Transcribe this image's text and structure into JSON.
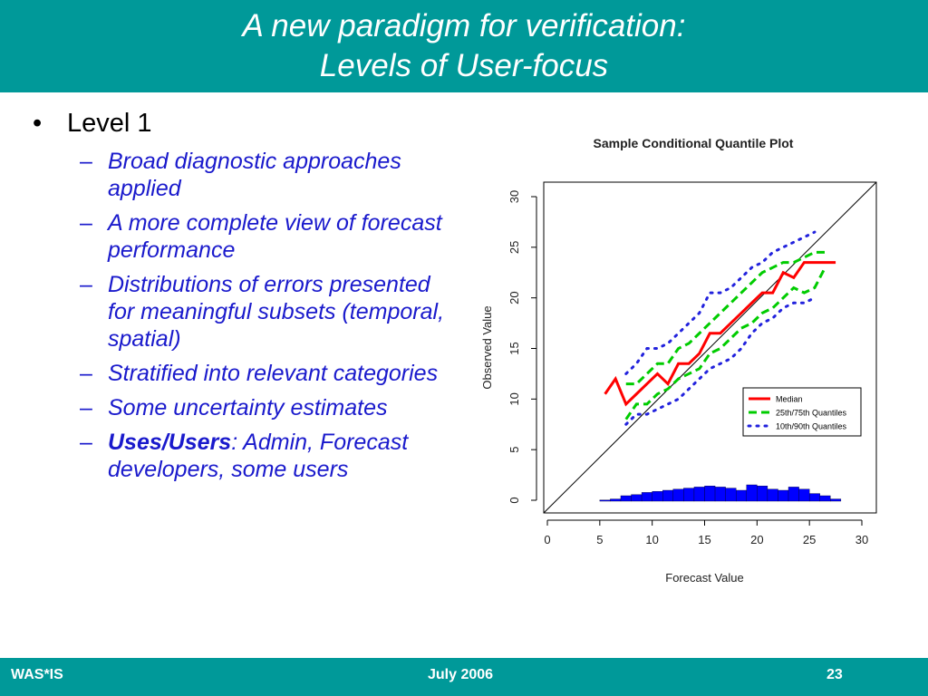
{
  "slide": {
    "title_line1": "A new paradigm for verification:",
    "title_line2": "Levels of User-focus",
    "level": "Level 1",
    "bullet_glyph": "•",
    "dash_glyph": "–",
    "items": [
      "Broad diagnostic approaches applied",
      "A more complete view of forecast performance",
      "Distributions of errors presented for meaningful subsets (temporal, spatial)",
      "Stratified into relevant categories",
      "Some uncertainty estimates"
    ],
    "last_item_bold": "Uses/Users",
    "last_item_rest": ": Admin, Forecast developers, some users"
  },
  "footer": {
    "left": "WAS*IS",
    "center": "July 2006",
    "right": "23"
  },
  "colors": {
    "brand": "#009999",
    "bullet_text": "#1a1acc"
  },
  "chart_data": {
    "type": "line",
    "title": "Sample Conditional Quantile Plot",
    "xlabel": "Forecast Value",
    "ylabel": "Observed Value",
    "xlim": [
      0,
      30
    ],
    "ylim": [
      0,
      30
    ],
    "xticks": [
      0,
      5,
      10,
      15,
      20,
      25,
      30
    ],
    "yticks": [
      0,
      5,
      10,
      15,
      20,
      25,
      30
    ],
    "grid": false,
    "legend_position": "bottom-right",
    "reference_line": "1:1",
    "x": [
      5.5,
      6.5,
      7.5,
      8.5,
      9.5,
      10.5,
      11.5,
      12.5,
      13.5,
      14.5,
      15.5,
      16.5,
      17.5,
      18.5,
      19.5,
      20.5,
      21.5,
      22.5,
      23.5,
      24.5,
      25.5,
      26.5,
      27.5
    ],
    "series": [
      {
        "name": "Median",
        "color": "#ff0000",
        "style": "solid",
        "values": [
          10.5,
          12,
          9.5,
          10.5,
          11.5,
          12.5,
          11.5,
          13.5,
          13.5,
          14.5,
          16.5,
          16.5,
          17.5,
          18.5,
          19.5,
          20.5,
          20.5,
          22.5,
          22,
          23.5,
          23.5,
          23.5,
          23.5
        ]
      },
      {
        "name": "25th/75th Quantiles",
        "color": "#00cc00",
        "style": "dashed",
        "lower": [
          null,
          null,
          8,
          9.5,
          9.5,
          10.5,
          11,
          12,
          12.5,
          13,
          14.5,
          15,
          16,
          17,
          17.5,
          18.5,
          19,
          20,
          21,
          20.5,
          21,
          23,
          null
        ],
        "upper": [
          null,
          null,
          11.5,
          11.5,
          12.5,
          13.5,
          13.5,
          15,
          15.5,
          16.5,
          17.5,
          18.5,
          19.5,
          20.5,
          21.5,
          22.5,
          23,
          23.5,
          23.5,
          24,
          24.5,
          24.5,
          null
        ]
      },
      {
        "name": "10th/90th Quantiles",
        "color": "#2222dd",
        "style": "dotted",
        "lower": [
          null,
          null,
          7.5,
          8.5,
          8.5,
          9,
          9.5,
          10,
          11,
          12,
          13,
          13.5,
          14,
          15,
          16.5,
          17.5,
          18,
          19,
          19.5,
          19.5,
          20,
          null,
          null
        ],
        "upper": [
          null,
          null,
          12.5,
          13.5,
          15,
          15,
          15.5,
          16.5,
          17.5,
          18.5,
          20.5,
          20.5,
          21,
          22,
          23,
          23.5,
          24.5,
          25,
          25.5,
          26,
          26.5,
          null,
          null
        ]
      }
    ],
    "histogram": {
      "color": "#0000ff",
      "bins_start": 5,
      "bin_width": 1,
      "counts": [
        0.1,
        0.2,
        0.5,
        0.6,
        0.8,
        0.9,
        1.0,
        1.1,
        1.2,
        1.3,
        1.4,
        1.3,
        1.2,
        1.0,
        1.5,
        1.4,
        1.1,
        1.0,
        1.3,
        1.1,
        0.7,
        0.5,
        0.2
      ]
    }
  }
}
